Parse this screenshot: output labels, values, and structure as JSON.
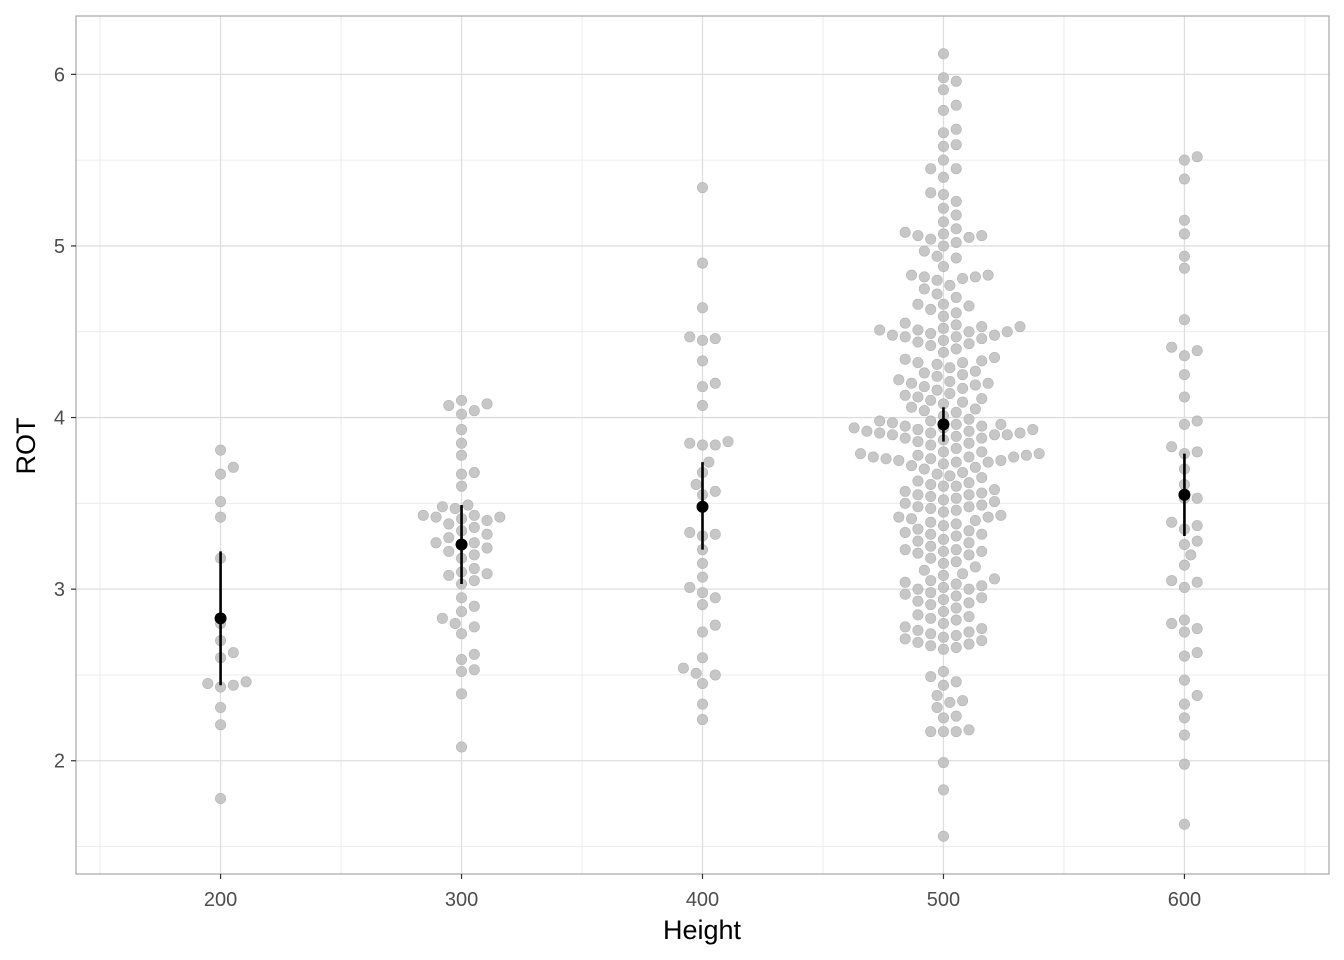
{
  "chart_data": {
    "type": "scatter",
    "xlabel": "Height",
    "ylabel": "ROT",
    "xlim": [
      140,
      660
    ],
    "ylim": [
      1.34,
      6.34
    ],
    "x_ticks": [
      200,
      300,
      400,
      500,
      600
    ],
    "y_ticks": [
      2,
      3,
      4,
      5,
      6
    ],
    "grid": true,
    "colors": {
      "points": "#bdbdbd",
      "summary": "#000000",
      "grid": "#dedede",
      "panel_border": "#a6a6a6"
    },
    "groups": [
      {
        "x": 200,
        "mean": 2.83,
        "ci_low": 2.44,
        "ci_high": 3.22,
        "values": [
          3.81,
          3.71,
          3.67,
          3.51,
          3.42,
          3.18,
          2.8,
          2.7,
          2.63,
          2.6,
          2.46,
          2.45,
          2.44,
          2.43,
          2.31,
          2.21,
          1.78
        ]
      },
      {
        "x": 300,
        "mean": 3.26,
        "ci_low": 3.03,
        "ci_high": 3.49,
        "values": [
          4.1,
          4.08,
          4.07,
          4.04,
          4.02,
          3.93,
          3.85,
          3.78,
          3.68,
          3.67,
          3.6,
          3.49,
          3.48,
          3.47,
          3.43,
          3.43,
          3.42,
          3.42,
          3.41,
          3.4,
          3.38,
          3.36,
          3.34,
          3.32,
          3.3,
          3.27,
          3.27,
          3.26,
          3.24,
          3.22,
          3.2,
          3.18,
          3.12,
          3.1,
          3.09,
          3.08,
          3.05,
          3.03,
          2.95,
          2.9,
          2.87,
          2.83,
          2.8,
          2.78,
          2.74,
          2.62,
          2.59,
          2.53,
          2.52,
          2.39,
          2.08
        ]
      },
      {
        "x": 400,
        "mean": 3.48,
        "ci_low": 3.23,
        "ci_high": 3.74,
        "values": [
          5.34,
          4.9,
          4.64,
          4.47,
          4.46,
          4.45,
          4.33,
          4.2,
          4.18,
          4.07,
          3.86,
          3.85,
          3.84,
          3.84,
          3.74,
          3.68,
          3.61,
          3.57,
          3.55,
          3.33,
          3.32,
          3.31,
          3.23,
          3.15,
          3.07,
          3.01,
          2.98,
          2.95,
          2.91,
          2.79,
          2.75,
          2.6,
          2.54,
          2.51,
          2.5,
          2.45,
          2.33,
          2.24
        ]
      },
      {
        "x": 500,
        "mean": 3.96,
        "ci_low": 3.86,
        "ci_high": 4.06,
        "values": [
          6.12,
          5.98,
          5.96,
          5.91,
          5.82,
          5.79,
          5.68,
          5.66,
          5.59,
          5.58,
          5.5,
          5.45,
          5.45,
          5.4,
          5.31,
          5.3,
          5.26,
          5.22,
          5.18,
          5.14,
          5.1,
          5.08,
          5.07,
          5.06,
          5.06,
          5.05,
          5.04,
          5.02,
          5.0,
          4.97,
          4.94,
          4.93,
          4.88,
          4.83,
          4.83,
          4.82,
          4.82,
          4.81,
          4.8,
          4.77,
          4.75,
          4.72,
          4.7,
          4.66,
          4.66,
          4.65,
          4.63,
          4.61,
          4.59,
          4.55,
          4.54,
          4.53,
          4.53,
          4.52,
          4.51,
          4.51,
          4.5,
          4.5,
          4.49,
          4.48,
          4.48,
          4.47,
          4.47,
          4.46,
          4.45,
          4.44,
          4.43,
          4.42,
          4.4,
          4.38,
          4.35,
          4.34,
          4.33,
          4.32,
          4.32,
          4.31,
          4.29,
          4.27,
          4.26,
          4.25,
          4.24,
          4.22,
          4.21,
          4.2,
          4.2,
          4.19,
          4.18,
          4.17,
          4.16,
          4.14,
          4.13,
          4.12,
          4.11,
          4.1,
          4.09,
          4.08,
          4.06,
          4.05,
          4.04,
          4.03,
          4.01,
          3.99,
          3.98,
          3.98,
          3.97,
          3.96,
          3.96,
          3.95,
          3.95,
          3.94,
          3.94,
          3.93,
          3.93,
          3.92,
          3.92,
          3.91,
          3.91,
          3.91,
          3.9,
          3.9,
          3.9,
          3.89,
          3.88,
          3.88,
          3.87,
          3.86,
          3.85,
          3.84,
          3.82,
          3.8,
          3.8,
          3.79,
          3.79,
          3.78,
          3.78,
          3.77,
          3.77,
          3.77,
          3.76,
          3.76,
          3.75,
          3.75,
          3.74,
          3.74,
          3.73,
          3.72,
          3.71,
          3.7,
          3.68,
          3.67,
          3.66,
          3.65,
          3.63,
          3.62,
          3.61,
          3.6,
          3.6,
          3.58,
          3.57,
          3.56,
          3.55,
          3.55,
          3.54,
          3.53,
          3.52,
          3.51,
          3.5,
          3.49,
          3.48,
          3.48,
          3.47,
          3.46,
          3.45,
          3.43,
          3.42,
          3.42,
          3.41,
          3.4,
          3.39,
          3.38,
          3.37,
          3.35,
          3.34,
          3.33,
          3.32,
          3.32,
          3.31,
          3.29,
          3.28,
          3.27,
          3.25,
          3.23,
          3.23,
          3.22,
          3.22,
          3.21,
          3.2,
          3.18,
          3.16,
          3.15,
          3.13,
          3.11,
          3.09,
          3.08,
          3.06,
          3.05,
          3.04,
          3.03,
          3.02,
          3.01,
          3.0,
          3.0,
          2.98,
          2.97,
          2.96,
          2.95,
          2.94,
          2.93,
          2.92,
          2.91,
          2.89,
          2.87,
          2.85,
          2.84,
          2.83,
          2.82,
          2.8,
          2.78,
          2.77,
          2.76,
          2.75,
          2.74,
          2.73,
          2.72,
          2.71,
          2.7,
          2.69,
          2.68,
          2.67,
          2.66,
          2.65,
          2.52,
          2.49,
          2.46,
          2.44,
          2.38,
          2.35,
          2.34,
          2.31,
          2.26,
          2.25,
          2.18,
          2.17,
          2.17,
          2.17,
          1.99,
          1.83,
          1.56
        ]
      },
      {
        "x": 600,
        "mean": 3.55,
        "ci_low": 3.31,
        "ci_high": 3.79,
        "values": [
          5.52,
          5.5,
          5.39,
          5.15,
          5.07,
          4.94,
          4.87,
          4.57,
          4.41,
          4.39,
          4.36,
          4.25,
          4.12,
          3.98,
          3.96,
          3.83,
          3.8,
          3.79,
          3.7,
          3.61,
          3.53,
          3.53,
          3.39,
          3.37,
          3.35,
          3.28,
          3.26,
          3.2,
          3.14,
          3.05,
          3.04,
          3.01,
          2.82,
          2.8,
          2.77,
          2.75,
          2.63,
          2.61,
          2.47,
          2.38,
          2.33,
          2.25,
          2.15,
          1.98,
          1.63
        ]
      }
    ]
  }
}
